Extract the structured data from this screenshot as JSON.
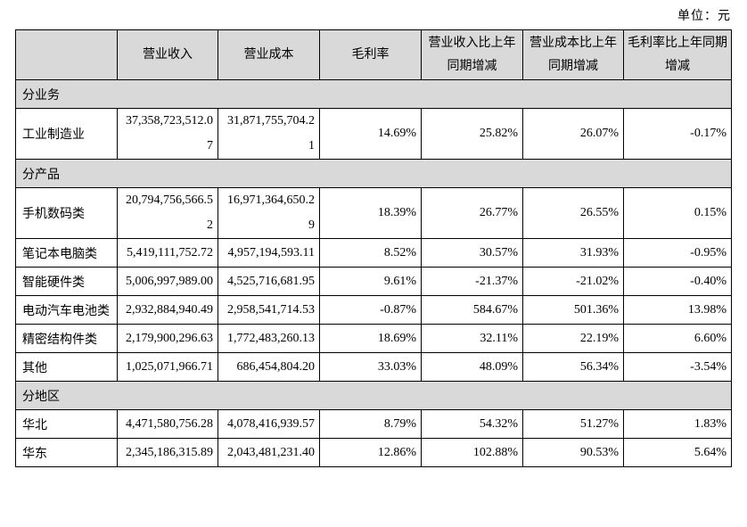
{
  "page": {
    "unit_label": "单位：元"
  },
  "table": {
    "columns": [
      "",
      "营业收入",
      "营业成本",
      "毛利率",
      "营业收入比上年同期增减",
      "营业成本比上年同期增减",
      "毛利率比上年同期增减"
    ],
    "sections": [
      {
        "label": "分业务",
        "rows": [
          {
            "label": "工业制造业",
            "revenue": "37,358,723,512.07",
            "cost": "31,871,755,704.21",
            "margin": "14.69%",
            "revenue_yoy": "25.82%",
            "cost_yoy": "26.07%",
            "margin_yoy": "-0.17%"
          }
        ]
      },
      {
        "label": "分产品",
        "rows": [
          {
            "label": "手机数码类",
            "revenue": "20,794,756,566.52",
            "cost": "16,971,364,650.29",
            "margin": "18.39%",
            "revenue_yoy": "26.77%",
            "cost_yoy": "26.55%",
            "margin_yoy": "0.15%"
          },
          {
            "label": "笔记本电脑类",
            "revenue": "5,419,111,752.72",
            "cost": "4,957,194,593.11",
            "margin": "8.52%",
            "revenue_yoy": "30.57%",
            "cost_yoy": "31.93%",
            "margin_yoy": "-0.95%"
          },
          {
            "label": "智能硬件类",
            "revenue": "5,006,997,989.00",
            "cost": "4,525,716,681.95",
            "margin": "9.61%",
            "revenue_yoy": "-21.37%",
            "cost_yoy": "-21.02%",
            "margin_yoy": "-0.40%"
          },
          {
            "label": "电动汽车电池类",
            "revenue": "2,932,884,940.49",
            "cost": "2,958,541,714.53",
            "margin": "-0.87%",
            "revenue_yoy": "584.67%",
            "cost_yoy": "501.36%",
            "margin_yoy": "13.98%"
          },
          {
            "label": "精密结构件类",
            "revenue": "2,179,900,296.63",
            "cost": "1,772,483,260.13",
            "margin": "18.69%",
            "revenue_yoy": "32.11%",
            "cost_yoy": "22.19%",
            "margin_yoy": "6.60%"
          },
          {
            "label": "其他",
            "revenue": "1,025,071,966.71",
            "cost": "686,454,804.20",
            "margin": "33.03%",
            "revenue_yoy": "48.09%",
            "cost_yoy": "56.34%",
            "margin_yoy": "-3.54%"
          }
        ]
      },
      {
        "label": "分地区",
        "rows": [
          {
            "label": "华北",
            "revenue": "4,471,580,756.28",
            "cost": "4,078,416,939.57",
            "margin": "8.79%",
            "revenue_yoy": "54.32%",
            "cost_yoy": "51.27%",
            "margin_yoy": "1.83%"
          },
          {
            "label": "华东",
            "revenue": "2,345,186,315.89",
            "cost": "2,043,481,231.40",
            "margin": "12.86%",
            "revenue_yoy": "102.88%",
            "cost_yoy": "90.53%",
            "margin_yoy": "5.64%"
          }
        ]
      }
    ],
    "colors": {
      "header_bg": "#d9d9d9",
      "border": "#000000",
      "text": "#000000"
    }
  }
}
